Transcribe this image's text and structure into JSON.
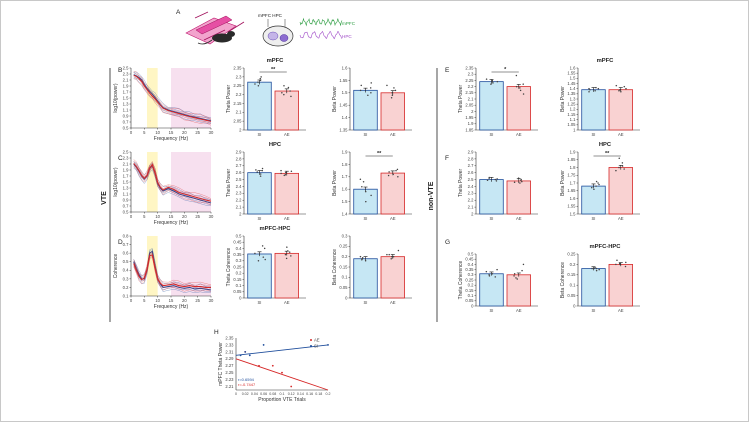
{
  "figure": {
    "panel_labels": {
      "A": "A",
      "B": "B",
      "C": "C",
      "D": "D",
      "E": "E",
      "F": "F",
      "G": "G",
      "H": "H"
    },
    "side_labels": {
      "vte": "VTE",
      "nonvte": "non-VTE"
    },
    "colors": {
      "si_fill": "#c6e7f4",
      "si_edge": "#1f4e9c",
      "ae_fill": "#f9d2d2",
      "ae_edge": "#d62828",
      "theta_band": "#fff6c4",
      "beta_band": "#f7e0ef"
    },
    "schematic": {
      "region_label": "mPFC HPC",
      "trace_mpfc": "mPFC",
      "trace_hpc": "HPC"
    },
    "axis_text": {
      "group_si": "SI",
      "group_ae": "AE",
      "freq_label": "Frequency (Hz)"
    }
  },
  "chart_data": [
    {
      "id": "B_spec",
      "type": "line",
      "ylabel": "log10(power)",
      "xlabel": "Frequency (Hz)",
      "xlim": [
        0,
        30
      ],
      "ylim": [
        0.5,
        2.5
      ],
      "yticks": [
        "2.5",
        "2.3",
        "2.1",
        "1.9",
        "1.7",
        "1.5",
        "1.3",
        "1.1",
        "0.9",
        "0.7",
        "0.5"
      ],
      "xticks": [
        "0",
        "5",
        "10",
        "15",
        "20",
        "25",
        "30"
      ],
      "theta_band": [
        6,
        10
      ],
      "beta_band": [
        15,
        30
      ],
      "series": [
        {
          "name": "SI",
          "x": [
            1,
            2,
            3,
            4,
            5,
            6,
            7,
            8,
            9,
            10,
            11,
            12,
            14,
            16,
            18,
            20,
            22,
            24,
            26,
            28,
            30
          ],
          "y": [
            2.28,
            2.24,
            2.18,
            2.1,
            1.95,
            1.82,
            1.72,
            1.63,
            1.52,
            1.4,
            1.28,
            1.18,
            1.1,
            1.05,
            1.0,
            0.95,
            0.9,
            0.86,
            0.82,
            0.78,
            0.74
          ]
        },
        {
          "name": "AE",
          "x": [
            1,
            2,
            3,
            4,
            5,
            6,
            7,
            8,
            9,
            10,
            11,
            12,
            14,
            16,
            18,
            20,
            22,
            24,
            26,
            28,
            30
          ],
          "y": [
            2.26,
            2.22,
            2.15,
            2.05,
            1.9,
            1.78,
            1.66,
            1.56,
            1.47,
            1.36,
            1.26,
            1.16,
            1.08,
            1.03,
            0.98,
            0.93,
            0.88,
            0.84,
            0.8,
            0.76,
            0.72
          ]
        }
      ]
    },
    {
      "id": "B_theta",
      "type": "bar",
      "title": "mPFC",
      "ylabel": "Theta Power",
      "categories": [
        "SI",
        "AE"
      ],
      "values": [
        2.27,
        2.22
      ],
      "ylim": [
        2.0,
        2.35
      ],
      "yticks": [
        "2.35",
        "2.3",
        "2.25",
        "2.2",
        "2.15",
        "2.1",
        "2.05",
        "2"
      ],
      "sig": "**",
      "points": [
        [
          2.29,
          2.27,
          2.25,
          2.28,
          2.26,
          2.3
        ],
        [
          2.2,
          2.25,
          2.22,
          2.19,
          2.24,
          2.21
        ]
      ]
    },
    {
      "id": "B_beta",
      "type": "bar",
      "title": "",
      "ylabel": "Beta Power",
      "categories": [
        "SI",
        "AE"
      ],
      "values": [
        1.51,
        1.5
      ],
      "ylim": [
        1.35,
        1.6
      ],
      "yticks": [
        "1.6",
        "1.55",
        "1.5",
        "1.45",
        "1.4",
        "1.35"
      ],
      "sig": "",
      "points": [
        [
          1.52,
          1.5,
          1.53,
          1.49,
          1.51,
          1.54
        ],
        [
          1.48,
          1.52,
          1.5,
          1.49,
          1.53,
          1.51
        ]
      ]
    },
    {
      "id": "C_spec",
      "type": "line",
      "ylabel": "log10(power)",
      "xlabel": "Frequency (Hz)",
      "xlim": [
        0,
        30
      ],
      "ylim": [
        0.5,
        2.5
      ],
      "yticks": [
        "2.5",
        "2.3",
        "2.1",
        "1.9",
        "1.7",
        "1.5",
        "1.3",
        "1.1",
        "0.9",
        "0.7",
        "0.5"
      ],
      "xticks": [
        "0",
        "5",
        "10",
        "15",
        "20",
        "25",
        "30"
      ],
      "theta_band": [
        6,
        10
      ],
      "beta_band": [
        15,
        30
      ],
      "series": [
        {
          "name": "SI",
          "x": [
            1,
            2,
            3,
            4,
            5,
            6,
            7,
            8,
            9,
            10,
            11,
            12,
            14,
            16,
            18,
            20,
            22,
            24,
            26,
            28,
            30
          ],
          "y": [
            2.1,
            2.0,
            1.85,
            1.7,
            1.6,
            1.7,
            1.95,
            2.05,
            1.8,
            1.45,
            1.3,
            1.2,
            1.28,
            1.2,
            1.1,
            1.05,
            1.0,
            0.95,
            0.9,
            0.85,
            0.8
          ]
        },
        {
          "name": "AE",
          "x": [
            1,
            2,
            3,
            4,
            5,
            6,
            7,
            8,
            9,
            10,
            11,
            12,
            14,
            16,
            18,
            20,
            22,
            24,
            26,
            28,
            30
          ],
          "y": [
            2.12,
            2.02,
            1.88,
            1.72,
            1.62,
            1.72,
            1.97,
            2.08,
            1.82,
            1.48,
            1.33,
            1.23,
            1.32,
            1.25,
            1.15,
            1.1,
            1.05,
            1.0,
            0.95,
            0.9,
            0.86
          ]
        }
      ]
    },
    {
      "id": "C_theta",
      "type": "bar",
      "title": "HPC",
      "ylabel": "Theta Power",
      "categories": [
        "SI",
        "AE"
      ],
      "values": [
        2.6,
        2.59
      ],
      "ylim": [
        2.0,
        2.9
      ],
      "yticks": [
        "2.9",
        "2.8",
        "2.7",
        "2.6",
        "2.5",
        "2.4",
        "2.3",
        "2.2",
        "2.1",
        "2"
      ],
      "sig": "",
      "points": [
        [
          2.63,
          2.58,
          2.66,
          2.55,
          2.61,
          2.64
        ],
        [
          2.57,
          2.62,
          2.6,
          2.56,
          2.63,
          2.59
        ]
      ]
    },
    {
      "id": "C_beta",
      "type": "bar",
      "title": "",
      "ylabel": "Beta Power",
      "categories": [
        "SI",
        "AE"
      ],
      "values": [
        1.6,
        1.73
      ],
      "ylim": [
        1.4,
        1.9
      ],
      "yticks": [
        "1.9",
        "1.8",
        "1.7",
        "1.6",
        "1.5",
        "1.4"
      ],
      "sig": "**",
      "points": [
        [
          1.55,
          1.66,
          1.62,
          1.5,
          1.68,
          1.58
        ],
        [
          1.71,
          1.75,
          1.74,
          1.72,
          1.76,
          1.7
        ]
      ]
    },
    {
      "id": "D_spec",
      "type": "line",
      "ylabel": "Coherence",
      "xlabel": "Frequency (Hz)",
      "xlim": [
        0,
        30
      ],
      "ylim": [
        0.1,
        0.8
      ],
      "yticks": [
        "0.8",
        "0.7",
        "0.6",
        "0.5",
        "0.4",
        "0.3",
        "0.2",
        "0.1"
      ],
      "xticks": [
        "0",
        "5",
        "10",
        "15",
        "20",
        "25",
        "30"
      ],
      "theta_band": [
        6,
        10
      ],
      "beta_band": [
        15,
        30
      ],
      "series": [
        {
          "name": "SI",
          "x": [
            1,
            2,
            3,
            4,
            5,
            6,
            7,
            8,
            9,
            10,
            11,
            12,
            14,
            16,
            18,
            20,
            22,
            24,
            26,
            28,
            30
          ],
          "y": [
            0.5,
            0.42,
            0.35,
            0.3,
            0.3,
            0.4,
            0.6,
            0.62,
            0.45,
            0.3,
            0.24,
            0.2,
            0.21,
            0.22,
            0.2,
            0.19,
            0.2,
            0.18,
            0.19,
            0.18,
            0.17
          ]
        },
        {
          "name": "AE",
          "x": [
            1,
            2,
            3,
            4,
            5,
            6,
            7,
            8,
            9,
            10,
            11,
            12,
            14,
            16,
            18,
            20,
            22,
            24,
            26,
            28,
            30
          ],
          "y": [
            0.48,
            0.4,
            0.33,
            0.29,
            0.31,
            0.41,
            0.57,
            0.58,
            0.43,
            0.3,
            0.25,
            0.22,
            0.23,
            0.24,
            0.22,
            0.21,
            0.22,
            0.21,
            0.21,
            0.2,
            0.2
          ]
        }
      ]
    },
    {
      "id": "D_theta",
      "type": "bar",
      "title": "mPFC-HPC",
      "ylabel": "Theta Coherence",
      "categories": [
        "SI",
        "AE"
      ],
      "values": [
        0.355,
        0.36
      ],
      "ylim": [
        0,
        0.5
      ],
      "yticks": [
        "0.5",
        "0.45",
        "0.4",
        "0.35",
        "0.3",
        "0.25",
        "0.2",
        "0.15",
        "0.1",
        "0.05",
        "0"
      ],
      "sig": "",
      "points": [
        [
          0.3,
          0.4,
          0.36,
          0.33,
          0.42,
          0.31
        ],
        [
          0.34,
          0.38,
          0.35,
          0.41,
          0.32,
          0.37
        ]
      ]
    },
    {
      "id": "D_beta",
      "type": "bar",
      "title": "",
      "ylabel": "Beta Coherence",
      "categories": [
        "SI",
        "AE"
      ],
      "values": [
        0.19,
        0.2
      ],
      "ylim": [
        0,
        0.3
      ],
      "yticks": [
        "0.3",
        "0.25",
        "0.2",
        "0.15",
        "0.1",
        "0.05",
        "0"
      ],
      "sig": "",
      "points": [
        [
          0.19,
          0.185,
          0.195,
          0.2,
          0.18,
          0.19
        ],
        [
          0.2,
          0.21,
          0.19,
          0.23,
          0.2,
          0.21
        ]
      ]
    },
    {
      "id": "E_theta",
      "type": "bar",
      "title": "",
      "ylabel": "Theta Power",
      "categories": [
        "SI",
        "AE"
      ],
      "values": [
        2.24,
        2.2
      ],
      "ylim": [
        1.85,
        2.35
      ],
      "yticks": [
        "2.35",
        "2.3",
        "2.25",
        "2.2",
        "2.15",
        "2.1",
        "2.05",
        "2",
        "1.95",
        "1.9",
        "1.85"
      ],
      "sig": "*",
      "points": [
        [
          2.25,
          2.23,
          2.24,
          2.22,
          2.26,
          2.24
        ],
        [
          2.14,
          2.19,
          2.29,
          2.2,
          2.17,
          2.22
        ]
      ]
    },
    {
      "id": "E_beta",
      "type": "bar",
      "title": "mPFC",
      "ylabel": "Beta Power",
      "categories": [
        "SI",
        "AE"
      ],
      "values": [
        1.39,
        1.39
      ],
      "ylim": [
        1.0,
        1.6
      ],
      "yticks": [
        "1.6",
        "1.55",
        "1.5",
        "1.45",
        "1.4",
        "1.35",
        "1.3",
        "1.25",
        "1.2",
        "1.15",
        "1.1",
        "1.05",
        "1"
      ],
      "sig": "",
      "points": [
        [
          1.38,
          1.4,
          1.39,
          1.37,
          1.41,
          1.4
        ],
        [
          1.38,
          1.42,
          1.4,
          1.43,
          1.37,
          1.39
        ]
      ]
    },
    {
      "id": "F_theta",
      "type": "bar",
      "title": "",
      "ylabel": "Theta Power",
      "categories": [
        "SI",
        "AE"
      ],
      "values": [
        2.5,
        2.48
      ],
      "ylim": [
        2.0,
        2.9
      ],
      "yticks": [
        "2.9",
        "2.8",
        "2.7",
        "2.6",
        "2.5",
        "2.4",
        "2.3",
        "2.2",
        "2.1",
        "2"
      ],
      "sig": "",
      "points": [
        [
          2.5,
          2.53,
          2.48,
          2.52,
          2.49,
          2.51
        ],
        [
          2.46,
          2.5,
          2.45,
          2.49,
          2.52,
          2.47
        ]
      ]
    },
    {
      "id": "F_beta",
      "type": "bar",
      "title": "HPC",
      "ylabel": "Beta Power",
      "categories": [
        "SI",
        "AE"
      ],
      "values": [
        1.68,
        1.8
      ],
      "ylim": [
        1.5,
        1.9
      ],
      "yticks": [
        "1.9",
        "1.85",
        "1.8",
        "1.75",
        "1.7",
        "1.65",
        "1.6",
        "1.55",
        "1.5"
      ],
      "sig": "**",
      "points": [
        [
          1.66,
          1.7,
          1.69,
          1.67,
          1.71,
          1.68
        ],
        [
          1.78,
          1.83,
          1.8,
          1.86,
          1.79,
          1.81
        ]
      ]
    },
    {
      "id": "G_theta",
      "type": "bar",
      "title": "",
      "ylabel": "Theta Coherence",
      "categories": [
        "SI",
        "AE"
      ],
      "values": [
        0.31,
        0.3
      ],
      "ylim": [
        0,
        0.5
      ],
      "yticks": [
        "0.5",
        "0.45",
        "0.4",
        "0.35",
        "0.3",
        "0.25",
        "0.2",
        "0.15",
        "0.1",
        "0.05",
        "0"
      ],
      "sig": "",
      "points": [
        [
          0.3,
          0.33,
          0.28,
          0.35,
          0.31,
          0.29
        ],
        [
          0.26,
          0.34,
          0.29,
          0.4,
          0.27,
          0.31
        ]
      ]
    },
    {
      "id": "G_beta",
      "type": "bar",
      "title": "mPFC-HPC",
      "ylabel": "Beta Coherence",
      "categories": [
        "SI",
        "AE"
      ],
      "values": [
        0.18,
        0.2
      ],
      "ylim": [
        0,
        0.25
      ],
      "yticks": [
        "0.25",
        "0.2",
        "0.15",
        "0.1",
        "0.05",
        "0"
      ],
      "sig": "",
      "points": [
        [
          0.18,
          0.175,
          0.185,
          0.18,
          0.17,
          0.18
        ],
        [
          0.2,
          0.21,
          0.19,
          0.22,
          0.2,
          0.205
        ]
      ]
    },
    {
      "id": "H_scatter",
      "type": "scatter",
      "ylabel": "mPFC Theta Power",
      "xlabel": "Proportion VTE Trials",
      "xlim": [
        0,
        0.2
      ],
      "ylim": [
        2.2,
        2.35
      ],
      "yticks": [
        "2.35",
        "2.33",
        "2.31",
        "2.29",
        "2.27",
        "2.25",
        "2.23",
        "2.21"
      ],
      "xticks": [
        "0",
        "0.02",
        "0.04",
        "0.06",
        "0.08",
        "0.1",
        "0.12",
        "0.14",
        "0.16",
        "0.18",
        "0.2"
      ],
      "legend": [
        "AE",
        "SI"
      ],
      "annotations": {
        "si": "r=0.6594",
        "ae": "r=-0.7447"
      },
      "series": [
        {
          "name": "AE",
          "points": [
            [
              0.02,
              2.31
            ],
            [
              0.05,
              2.27
            ],
            [
              0.08,
              2.27
            ],
            [
              0.1,
              2.25
            ],
            [
              0.12,
              2.21
            ]
          ],
          "fit": [
            [
              0,
              2.29
            ],
            [
              0.2,
              2.2
            ]
          ]
        },
        {
          "name": "SI",
          "points": [
            [
              0.01,
              2.3
            ],
            [
              0.02,
              2.31
            ],
            [
              0.03,
              2.3
            ],
            [
              0.06,
              2.33
            ],
            [
              0.2,
              2.33
            ]
          ],
          "fit": [
            [
              0,
              2.3
            ],
            [
              0.2,
              2.33
            ]
          ]
        }
      ]
    }
  ]
}
